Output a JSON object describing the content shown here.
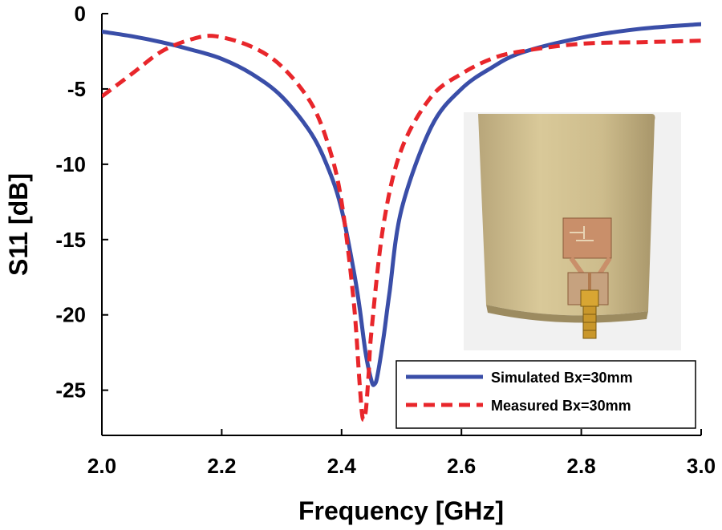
{
  "chart_data": {
    "type": "line",
    "xlabel": "Frequency [GHz]",
    "ylabel": "S11 [dB]",
    "xlim": [
      2.0,
      3.0
    ],
    "ylim": [
      -28,
      0
    ],
    "xticks": [
      2.0,
      2.2,
      2.4,
      2.6,
      2.8,
      3.0
    ],
    "xtick_labels": [
      "2.0",
      "2.2",
      "2.4",
      "2.6",
      "2.8",
      "3.0"
    ],
    "yticks": [
      0,
      -5,
      -10,
      -15,
      -20,
      -25
    ],
    "ytick_labels": [
      "0",
      "-5",
      "-10",
      "-15",
      "-20",
      "-25"
    ],
    "grid": false,
    "legend_position": "bottom-right",
    "series": [
      {
        "name": "Simulated Bx=30mm",
        "color": "#3a4ea8",
        "style": "solid",
        "x": [
          2.0,
          2.05,
          2.1,
          2.15,
          2.2,
          2.25,
          2.3,
          2.35,
          2.38,
          2.4,
          2.42,
          2.43,
          2.44,
          2.45,
          2.455,
          2.46,
          2.47,
          2.48,
          2.5,
          2.55,
          2.6,
          2.65,
          2.7,
          2.8,
          2.9,
          3.0
        ],
        "y": [
          -1.2,
          -1.5,
          -1.9,
          -2.4,
          -3.0,
          -4.0,
          -5.5,
          -8.0,
          -10.5,
          -13.0,
          -17.0,
          -19.5,
          -22.5,
          -24.4,
          -24.6,
          -24.0,
          -21.5,
          -18.5,
          -13.0,
          -7.5,
          -5.0,
          -3.6,
          -2.6,
          -1.6,
          -1.0,
          -0.7
        ]
      },
      {
        "name": "Measured Bx=30mm",
        "color": "#e8262b",
        "style": "dashed",
        "x": [
          2.0,
          2.05,
          2.1,
          2.15,
          2.19,
          2.25,
          2.3,
          2.35,
          2.38,
          2.4,
          2.42,
          2.43,
          2.435,
          2.44,
          2.445,
          2.45,
          2.47,
          2.5,
          2.55,
          2.6,
          2.65,
          2.7,
          2.8,
          2.9,
          3.0
        ],
        "y": [
          -5.5,
          -4.0,
          -2.5,
          -1.7,
          -1.5,
          -2.2,
          -3.5,
          -6.0,
          -9.0,
          -12.5,
          -19.0,
          -24.5,
          -26.8,
          -26.5,
          -24.0,
          -21.0,
          -14.0,
          -9.0,
          -5.5,
          -4.0,
          -3.0,
          -2.5,
          -2.0,
          -1.9,
          -1.8
        ]
      }
    ]
  },
  "inset": {
    "description_icon": "antenna-photo-icon"
  }
}
